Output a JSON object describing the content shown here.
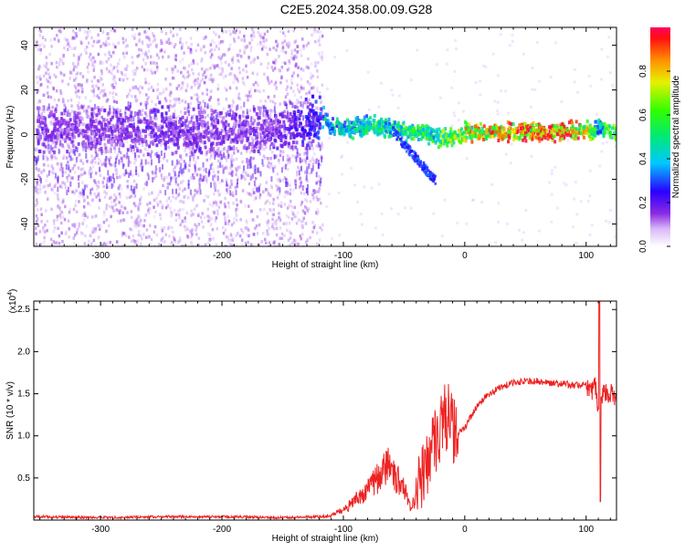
{
  "title": "C2E5.2024.358.00.09.G28",
  "chart_data": [
    {
      "type": "heatmap",
      "xlabel": "Height of straight line (km)",
      "ylabel": "Frequency (Hz)",
      "xlim": [
        -355,
        125
      ],
      "ylim": [
        -50,
        48
      ],
      "xticks": [
        -300,
        -200,
        -100,
        0,
        100
      ],
      "yticks": [
        -40,
        -20,
        0,
        20,
        40
      ],
      "colorbar": {
        "label": "Normalized spectral amplitude",
        "range": [
          0,
          1
        ],
        "ticks": [
          0.0,
          0.2,
          0.4,
          0.6,
          0.8
        ]
      },
      "ridge": {
        "description_x": [
          -355,
          -300,
          -250,
          -200,
          -150,
          -120,
          -110,
          -100,
          -80,
          -60,
          -40,
          -25,
          -15,
          -5,
          0,
          20,
          50,
          80,
          95,
          105,
          110,
          115,
          125
        ],
        "frequency": [
          3,
          2,
          3,
          2,
          3,
          8,
          4,
          3,
          5,
          4,
          2,
          0,
          -1,
          0,
          2,
          2,
          2,
          2,
          3,
          2,
          5,
          2,
          2
        ],
        "amplitude": [
          0.1,
          0.1,
          0.12,
          0.1,
          0.12,
          0.18,
          0.45,
          0.5,
          0.5,
          0.55,
          0.6,
          0.55,
          0.7,
          0.75,
          0.8,
          0.85,
          0.95,
          0.95,
          0.9,
          0.6,
          0.4,
          0.6,
          0.7
        ]
      }
    },
    {
      "type": "line",
      "xlabel": "Height of straight line (km)",
      "ylabel": "SNR (10 * v/v)",
      "y_multiplier": "(x10",
      "y_multiplier_exp": "4",
      "xlim": [
        -355,
        125
      ],
      "ylim": [
        0,
        2.6
      ],
      "xticks": [
        -300,
        -200,
        -100,
        0,
        100
      ],
      "yticks": [
        0.5,
        1.0,
        1.5,
        2.0,
        2.5
      ],
      "ytick_labels": [
        "0.5",
        "1.0",
        "1.5",
        "2.0",
        "2.5"
      ],
      "series": [
        {
          "color": "#ee2222",
          "x": [
            -355,
            -300,
            -250,
            -200,
            -150,
            -120,
            -110,
            -100,
            -90,
            -80,
            -70,
            -65,
            -60,
            -55,
            -50,
            -45,
            -40,
            -35,
            -30,
            -25,
            -20,
            -15,
            -10,
            -5,
            0,
            10,
            20,
            30,
            40,
            50,
            60,
            70,
            80,
            90,
            100,
            105,
            108,
            110,
            112,
            115,
            120,
            125
          ],
          "y": [
            0.04,
            0.03,
            0.04,
            0.04,
            0.03,
            0.04,
            0.05,
            0.1,
            0.2,
            0.3,
            0.45,
            0.55,
            0.5,
            0.4,
            0.3,
            0.15,
            0.2,
            0.45,
            0.75,
            0.9,
            1.1,
            1.2,
            1.0,
            1.05,
            1.1,
            1.35,
            1.5,
            1.58,
            1.63,
            1.65,
            1.65,
            1.63,
            1.62,
            1.6,
            1.6,
            1.55,
            1.6,
            1.2,
            1.45,
            1.5,
            1.5,
            1.45
          ]
        }
      ]
    }
  ]
}
